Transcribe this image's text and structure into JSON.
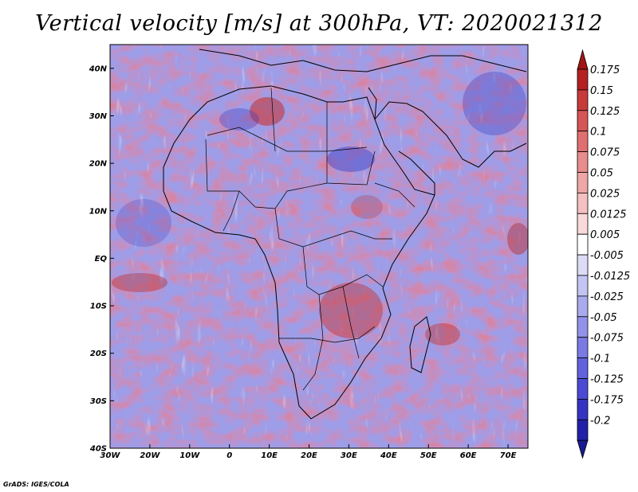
{
  "title": "Vertical velocity [m/s] at 300hPa, VT: 2020021312",
  "footer": "GrADS: IGES/COLA",
  "map": {
    "lon_range": [
      -30,
      75
    ],
    "lat_range": [
      -40,
      45
    ],
    "lon_ticks": [
      "30W",
      "20W",
      "10W",
      "0",
      "10E",
      "20E",
      "30E",
      "40E",
      "50E",
      "60E",
      "70E"
    ],
    "lat_ticks": [
      "40N",
      "30N",
      "20N",
      "10N",
      "EQ",
      "10S",
      "20S",
      "30S",
      "40S"
    ],
    "variable": "vertical velocity",
    "units": "m/s",
    "level": "300hPa"
  },
  "colorbar": {
    "levels": [
      "0.175",
      "0.15",
      "0.125",
      "0.1",
      "0.075",
      "0.05",
      "0.025",
      "0.0125",
      "0.005",
      "-0.005",
      "-0.0125",
      "-0.025",
      "-0.05",
      "-0.075",
      "-0.1",
      "-0.125",
      "-0.175",
      "-0.2"
    ],
    "colors": [
      "#b52020",
      "#c83a3a",
      "#d65555",
      "#e07070",
      "#e88c8c",
      "#efa6a6",
      "#f4c0c0",
      "#f9d9d9",
      "#ffffff",
      "#dcdcf6",
      "#c4c4f2",
      "#aaaaee",
      "#9292ea",
      "#7a7ae4",
      "#6262de",
      "#4a4ad4",
      "#3434c4",
      "#2020a8"
    ],
    "top_arrow_color": "#a01515",
    "bottom_arrow_color": "#1a1a90"
  }
}
